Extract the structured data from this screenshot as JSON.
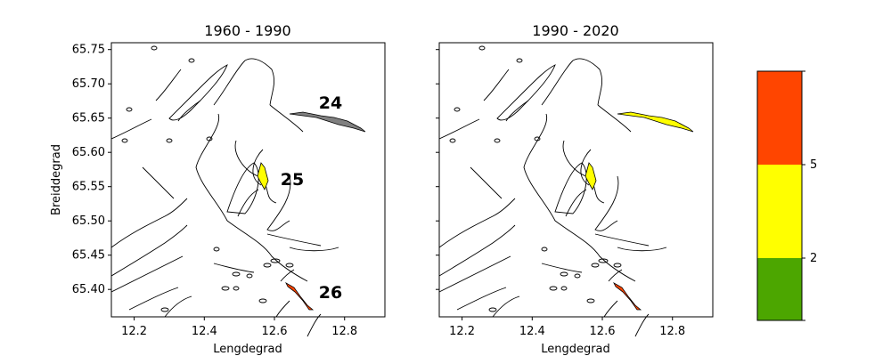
{
  "chart_data": {
    "type": "map",
    "xlim": [
      12.135,
      12.915
    ],
    "ylim": [
      65.36,
      65.76
    ],
    "xticks": [
      12.2,
      12.4,
      12.6,
      12.8
    ],
    "yticks": [
      65.4,
      65.45,
      65.5,
      65.55,
      65.6,
      65.65,
      65.7,
      65.75
    ],
    "xtick_labels": [
      "12.2",
      "12.4",
      "12.6",
      "12.8"
    ],
    "ytick_labels": [
      "65.40",
      "65.45",
      "65.50",
      "65.55",
      "65.60",
      "65.65",
      "65.70",
      "65.75"
    ],
    "xlabel": "Lengdegrad",
    "ylabel": "Breiddegrad",
    "panels": [
      {
        "title": "1960 - 1990",
        "regions": [
          {
            "id": "24",
            "fill": "#808080",
            "label": "24"
          },
          {
            "id": "25",
            "fill": "#ffff00",
            "label": "25"
          },
          {
            "id": "26",
            "fill": "#ff4500",
            "label": "26"
          }
        ]
      },
      {
        "title": "1990 - 2020",
        "regions": [
          {
            "id": "24",
            "fill": "#ffff00",
            "label": ""
          },
          {
            "id": "25",
            "fill": "#ffff00",
            "label": ""
          },
          {
            "id": "26",
            "fill": "#ff4500",
            "label": ""
          }
        ]
      }
    ],
    "colorbar": {
      "bounds": [
        0,
        2,
        5,
        8
      ],
      "colors": [
        "#4ca600",
        "#ffff00",
        "#ff4500"
      ],
      "tick_values": [
        2,
        5
      ],
      "tick_labels": [
        "2",
        "5"
      ]
    }
  }
}
